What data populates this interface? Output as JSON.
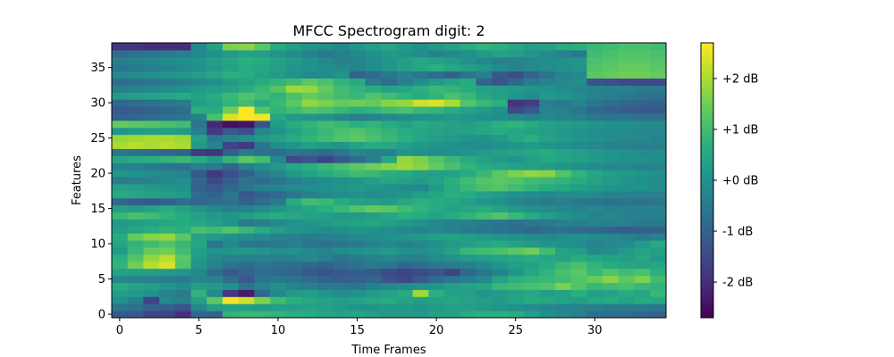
{
  "chart_data": {
    "type": "heatmap",
    "title": "MFCC Spectrogram digit: 2",
    "xlabel": "Time Frames",
    "ylabel": "Features",
    "x_ticks": [
      "0",
      "5",
      "10",
      "15",
      "20",
      "25",
      "30"
    ],
    "x_tick_values": [
      0,
      5,
      10,
      15,
      20,
      25,
      30
    ],
    "y_ticks": [
      "0",
      "5",
      "10",
      "15",
      "20",
      "25",
      "30",
      "35"
    ],
    "y_tick_values": [
      0,
      5,
      10,
      15,
      20,
      25,
      30,
      35
    ],
    "xlim": [
      -0.5,
      34.5
    ],
    "ylim": [
      -0.5,
      38.5
    ],
    "n_frames": 35,
    "n_features": 39,
    "colormap": "viridis",
    "colorbar": {
      "vmin": -2.7,
      "vmax": 2.7,
      "tick_values": [
        -2,
        -1,
        0,
        1,
        2
      ],
      "tick_labels": [
        "-2 dB",
        "-1 dB",
        "+0 dB",
        "+1 dB",
        "+2 dB"
      ]
    },
    "cell_values": [
      [
        -1.2,
        -1.2,
        -1.6,
        -1.6,
        -2.0,
        -0.9,
        -1.0,
        0.8,
        0.9,
        0.9,
        0.8,
        0.7,
        0.6,
        0.5,
        0.4,
        0.5,
        0.3,
        0.2,
        0.2,
        0.2,
        0.4,
        0.4,
        0.6,
        0.7,
        0.7,
        0.6,
        0.3,
        0.0,
        -0.2,
        -0.4,
        -0.7,
        -0.8,
        -0.8,
        -0.9,
        -1.0
      ],
      [
        -0.6,
        -0.7,
        -1.0,
        -1.1,
        -1.3,
        -0.2,
        0.3,
        0.4,
        0.3,
        0.2,
        0.3,
        0.3,
        0.4,
        0.3,
        0.2,
        0.1,
        0.1,
        0.2,
        0.2,
        0.1,
        0.2,
        0.3,
        0.3,
        0.2,
        0.1,
        0.0,
        -0.1,
        -0.2,
        -0.3,
        -0.3,
        -0.4,
        -0.5,
        -0.5,
        -0.5,
        -0.6
      ],
      [
        0.0,
        -0.4,
        -1.6,
        -0.2,
        -0.4,
        0.3,
        1.3,
        2.6,
        2.3,
        1.6,
        1.0,
        0.7,
        0.5,
        0.4,
        0.3,
        0.4,
        0.5,
        0.6,
        0.4,
        0.3,
        0.4,
        0.5,
        0.4,
        0.3,
        0.2,
        0.4,
        0.6,
        0.5,
        0.4,
        0.3,
        0.5,
        0.6,
        0.4,
        0.6,
        0.5
      ],
      [
        0.3,
        0.2,
        0.0,
        -0.3,
        -0.5,
        0.8,
        -0.2,
        -1.8,
        -2.3,
        -0.9,
        -0.2,
        0.2,
        0.3,
        0.1,
        -0.1,
        0.0,
        0.2,
        0.4,
        0.6,
        1.9,
        0.7,
        0.4,
        0.3,
        0.1,
        0.2,
        0.4,
        0.5,
        0.3,
        0.4,
        0.7,
        0.3,
        0.4,
        0.6,
        0.5,
        0.9
      ],
      [
        0.6,
        0.4,
        0.3,
        0.1,
        -0.1,
        0.3,
        0.2,
        0.0,
        -0.6,
        -0.3,
        0.0,
        -0.3,
        -0.4,
        -0.5,
        -0.5,
        -0.6,
        -0.4,
        -0.2,
        -0.1,
        0.0,
        0.1,
        0.3,
        0.4,
        0.5,
        0.9,
        1.0,
        1.1,
        1.2,
        1.6,
        1.2,
        0.9,
        1.0,
        1.1,
        0.9,
        0.8
      ],
      [
        -0.2,
        -0.3,
        -0.4,
        -0.4,
        -0.5,
        -0.2,
        -0.3,
        -0.8,
        -1.2,
        -0.6,
        -0.5,
        -0.6,
        -0.8,
        -1.0,
        -1.1,
        -1.0,
        -0.9,
        -1.3,
        -1.5,
        -1.2,
        -0.8,
        -0.6,
        -0.4,
        -0.2,
        0.4,
        0.7,
        0.8,
        0.9,
        1.0,
        1.2,
        1.4,
        1.7,
        1.3,
        1.6,
        1.0
      ],
      [
        0.4,
        0.3,
        0.3,
        0.2,
        0.1,
        -0.2,
        -0.8,
        -1.2,
        -1.0,
        -0.8,
        -0.9,
        -1.0,
        -1.2,
        -1.3,
        -1.2,
        -1.1,
        -1.2,
        -1.5,
        -1.6,
        -1.5,
        -1.3,
        -1.6,
        -0.9,
        -0.6,
        -0.3,
        0.1,
        0.5,
        0.8,
        1.1,
        1.3,
        0.9,
        1.2,
        1.0,
        1.1,
        0.7
      ],
      [
        0.8,
        1.5,
        2.1,
        2.4,
        1.2,
        0.1,
        -0.3,
        -0.6,
        -0.8,
        -0.6,
        -0.7,
        -0.8,
        -0.9,
        -1.0,
        -0.8,
        -0.7,
        -0.5,
        -0.6,
        -0.9,
        -0.8,
        -0.6,
        -0.5,
        -0.4,
        -0.2,
        0.1,
        0.3,
        0.4,
        0.6,
        0.9,
        1.1,
        0.8,
        0.6,
        0.5,
        0.4,
        0.5
      ],
      [
        0.7,
        1.2,
        1.8,
        2.1,
        1.3,
        0.2,
        -0.2,
        -0.3,
        -0.4,
        -0.3,
        -0.4,
        -0.3,
        -0.2,
        -0.4,
        -0.6,
        -0.5,
        -0.3,
        -0.2,
        -0.4,
        -0.3,
        -0.1,
        0.0,
        0.2,
        0.3,
        0.4,
        0.5,
        0.6,
        0.5,
        0.4,
        0.6,
        0.5,
        0.4,
        0.3,
        0.5,
        0.2
      ],
      [
        0.2,
        0.9,
        1.4,
        1.5,
        1.0,
        0.3,
        0.0,
        0.1,
        0.2,
        0.1,
        -0.1,
        0.0,
        -0.2,
        -0.3,
        -0.1,
        0.0,
        0.1,
        0.2,
        0.0,
        -0.1,
        0.1,
        0.4,
        0.9,
        1.0,
        1.1,
        1.3,
        1.5,
        1.0,
        0.4,
        0.3,
        -0.2,
        -0.1,
        0.2,
        0.4,
        0.3
      ],
      [
        0.5,
        0.8,
        1.0,
        1.2,
        0.9,
        0.5,
        -0.6,
        -0.2,
        -0.5,
        -0.6,
        -0.5,
        -0.4,
        -0.6,
        -0.7,
        -0.6,
        -0.5,
        -0.3,
        -0.2,
        -0.4,
        -0.2,
        0.0,
        0.2,
        0.3,
        0.5,
        0.6,
        0.4,
        0.2,
        0.1,
        0.0,
        -0.1,
        -0.3,
        -0.2,
        -0.1,
        0.2,
        0.6
      ],
      [
        0.6,
        1.4,
        1.7,
        1.8,
        1.3,
        0.4,
        0.2,
        0.0,
        -0.1,
        -0.2,
        -0.3,
        -0.4,
        -0.5,
        -0.4,
        -0.3,
        -0.2,
        -0.1,
        0.0,
        0.1,
        0.2,
        0.3,
        0.4,
        0.3,
        0.2,
        0.1,
        0.0,
        -0.1,
        -0.2,
        -0.1,
        0.0,
        -0.1,
        -0.2,
        -0.3,
        -0.5,
        -0.4
      ],
      [
        0.3,
        0.5,
        0.6,
        0.8,
        0.7,
        1.1,
        1.0,
        1.2,
        0.9,
        0.6,
        0.3,
        0.1,
        0.0,
        -0.1,
        0.0,
        0.1,
        0.0,
        -0.1,
        -0.2,
        -0.3,
        -0.2,
        -0.4,
        -0.5,
        -0.6,
        -0.7,
        -0.8,
        -0.9,
        -0.8,
        -0.7,
        -0.8,
        -0.9,
        -1.0,
        -1.1,
        -1.0,
        -1.0
      ],
      [
        0.2,
        0.3,
        0.4,
        0.5,
        0.6,
        0.5,
        0.3,
        0.1,
        -0.5,
        -0.4,
        -0.2,
        0.0,
        0.1,
        0.2,
        0.3,
        0.4,
        0.5,
        0.3,
        0.2,
        0.0,
        -0.2,
        -0.3,
        -0.4,
        -0.5,
        -0.6,
        -0.7,
        -0.6,
        -0.5,
        -0.4,
        -0.4,
        -0.3,
        -0.3,
        -0.4,
        -0.5,
        -0.5
      ],
      [
        0.9,
        1.1,
        1.0,
        0.8,
        0.6,
        0.4,
        0.2,
        0.1,
        0.3,
        0.5,
        0.6,
        0.5,
        0.4,
        0.3,
        0.2,
        0.2,
        0.3,
        0.5,
        0.7,
        0.6,
        0.4,
        0.6,
        0.8,
        1.0,
        1.2,
        0.9,
        0.6,
        0.3,
        0.1,
        -0.1,
        -0.3,
        -0.2,
        -0.3,
        -0.4,
        -0.4
      ],
      [
        0.3,
        0.2,
        0.4,
        0.6,
        0.4,
        0.1,
        -0.2,
        -0.4,
        -0.3,
        -0.1,
        0.1,
        0.3,
        0.5,
        0.7,
        0.9,
        1.2,
        1.4,
        1.3,
        1.0,
        0.8,
        0.6,
        0.4,
        0.5,
        0.6,
        0.4,
        0.2,
        0.0,
        -0.1,
        -0.2,
        -0.3,
        -0.2,
        -0.3,
        -0.4,
        -0.3,
        -0.3
      ],
      [
        -0.9,
        -1.1,
        -1.2,
        -1.0,
        -0.8,
        -0.9,
        -0.8,
        -0.7,
        -1.0,
        -0.8,
        -0.5,
        0.6,
        1.0,
        0.9,
        0.6,
        0.4,
        0.3,
        0.2,
        0.5,
        0.7,
        0.6,
        0.5,
        0.3,
        0.1,
        0.0,
        -0.2,
        -0.4,
        -0.5,
        -0.4,
        -0.5,
        -0.6,
        -0.7,
        -0.6,
        -0.7,
        -0.6
      ],
      [
        0.6,
        0.5,
        0.4,
        0.3,
        0.2,
        -0.8,
        -1.0,
        -0.6,
        -1.2,
        -1.0,
        -0.8,
        -0.6,
        -0.4,
        -0.2,
        -0.1,
        0.0,
        -0.1,
        0.0,
        0.1,
        0.3,
        0.5,
        0.7,
        0.6,
        0.4,
        0.2,
        0.0,
        -0.1,
        -0.2,
        -0.1,
        -0.1,
        -0.2,
        -0.3,
        -0.3,
        -0.4,
        -0.4
      ],
      [
        0.4,
        0.3,
        0.2,
        0.1,
        0.0,
        -1.0,
        -1.2,
        -0.9,
        -0.6,
        -0.4,
        -0.3,
        -0.2,
        -0.1,
        0.0,
        0.1,
        0.2,
        0.1,
        0.0,
        -0.1,
        -0.2,
        0.2,
        0.6,
        0.9,
        1.1,
        1.2,
        1.0,
        0.8,
        0.6,
        0.5,
        0.3,
        0.2,
        0.1,
        0.0,
        0.0,
        -0.1
      ],
      [
        -0.5,
        -0.4,
        -0.3,
        -0.2,
        -0.1,
        -0.9,
        -1.5,
        -1.1,
        -0.7,
        -0.8,
        -0.6,
        -0.4,
        -0.2,
        -0.1,
        0.0,
        0.1,
        0.3,
        0.5,
        0.4,
        0.2,
        0.4,
        0.7,
        1.0,
        1.2,
        1.3,
        1.2,
        1.0,
        0.9,
        0.8,
        0.6,
        0.4,
        0.2,
        0.1,
        0.0,
        -0.1
      ],
      [
        0.1,
        0.0,
        -0.1,
        -0.2,
        -0.3,
        -1.2,
        -1.8,
        -1.4,
        -1.0,
        -0.5,
        -0.2,
        0.2,
        0.4,
        0.6,
        0.8,
        1.0,
        0.9,
        0.7,
        0.6,
        0.4,
        0.3,
        0.4,
        0.6,
        0.9,
        1.3,
        1.6,
        1.8,
        1.7,
        1.2,
        0.8,
        0.5,
        0.3,
        0.2,
        0.1,
        0.0
      ],
      [
        -0.3,
        -0.4,
        -0.5,
        -0.6,
        -0.7,
        -0.4,
        -0.5,
        -0.9,
        -0.4,
        -0.1,
        0.2,
        0.5,
        0.7,
        0.9,
        1.1,
        1.3,
        1.5,
        1.7,
        1.9,
        1.7,
        1.4,
        1.1,
        0.8,
        0.6,
        0.5,
        0.4,
        0.3,
        0.2,
        0.1,
        0.0,
        -0.1,
        -0.2,
        -0.2,
        -0.3,
        -0.3
      ],
      [
        0.5,
        0.6,
        0.7,
        0.8,
        0.9,
        0.6,
        0.2,
        0.8,
        1.3,
        1.0,
        -0.2,
        -1.5,
        -1.3,
        -1.6,
        -1.2,
        -0.8,
        -0.4,
        0.5,
        1.8,
        1.6,
        1.2,
        0.9,
        0.6,
        0.4,
        0.2,
        0.1,
        0.3,
        0.5,
        0.4,
        0.3,
        0.2,
        0.1,
        0.0,
        0.0,
        -0.1
      ],
      [
        -0.6,
        -0.7,
        -0.8,
        -0.9,
        -1.0,
        -1.8,
        -1.9,
        -1.1,
        -0.5,
        -0.7,
        -0.8,
        -0.6,
        -0.7,
        -0.8,
        -0.6,
        -0.2,
        -0.4,
        -0.3,
        0.1,
        0.0,
        -0.1,
        0.0,
        0.1,
        0.2,
        0.3,
        0.4,
        0.5,
        0.6,
        0.4,
        0.3,
        0.2,
        0.1,
        0.0,
        -0.1,
        -0.1
      ],
      [
        2.0,
        2.1,
        2.0,
        2.1,
        2.0,
        0.2,
        -0.3,
        -1.6,
        -1.8,
        -0.6,
        -0.1,
        0.1,
        0.3,
        0.2,
        0.1,
        0.4,
        0.6,
        0.5,
        0.3,
        0.2,
        0.1,
        0.0,
        -0.1,
        -0.1,
        0.0,
        0.1,
        0.2,
        0.1,
        0.0,
        -0.1,
        -0.2,
        -0.3,
        -0.3,
        -0.4,
        -0.4
      ],
      [
        1.8,
        1.9,
        2.0,
        2.0,
        1.9,
        0.4,
        -0.5,
        -0.3,
        -0.1,
        0.2,
        0.4,
        0.6,
        0.8,
        1.0,
        1.2,
        1.3,
        1.1,
        0.9,
        0.7,
        0.5,
        0.3,
        0.2,
        0.1,
        0.0,
        0.2,
        0.5,
        0.7,
        0.4,
        0.2,
        0.1,
        0.0,
        -0.1,
        -0.2,
        -0.2,
        -0.3
      ],
      [
        0.1,
        0.2,
        0.3,
        0.3,
        0.2,
        -0.4,
        -1.8,
        -1.2,
        -1.4,
        -0.2,
        0.1,
        0.4,
        0.7,
        0.9,
        1.1,
        1.2,
        1.0,
        0.8,
        0.6,
        0.5,
        0.4,
        0.3,
        0.4,
        0.5,
        0.6,
        0.5,
        0.4,
        0.3,
        0.2,
        0.1,
        0.0,
        -0.1,
        -0.1,
        -0.2,
        -0.2
      ],
      [
        1.4,
        1.3,
        1.2,
        1.1,
        1.0,
        -0.6,
        -2.1,
        -2.5,
        -2.4,
        -1.3,
        0.2,
        0.6,
        0.8,
        1.0,
        0.9,
        0.7,
        0.8,
        0.6,
        0.4,
        0.6,
        0.5,
        0.4,
        0.3,
        0.5,
        0.7,
        0.8,
        0.6,
        0.4,
        0.3,
        0.2,
        0.1,
        0.0,
        0.0,
        -0.1,
        -0.1
      ],
      [
        -1.0,
        -0.9,
        -0.8,
        -0.7,
        -0.6,
        -0.3,
        1.1,
        2.4,
        2.7,
        2.6,
        0.5,
        0.2,
        0.1,
        0.0,
        -0.2,
        -0.4,
        -0.3,
        -0.2,
        -0.1,
        0.0,
        0.1,
        0.2,
        0.1,
        0.0,
        -0.1,
        -0.2,
        -0.3,
        -0.2,
        -0.3,
        -0.4,
        -0.5,
        -0.6,
        -0.6,
        -0.7,
        -0.7
      ],
      [
        -1.2,
        -1.1,
        -1.0,
        -0.9,
        -0.8,
        0.7,
        0.6,
        1.5,
        2.7,
        1.2,
        0.8,
        1.0,
        1.2,
        1.1,
        0.9,
        0.7,
        0.8,
        1.0,
        1.1,
        0.9,
        0.8,
        0.6,
        0.4,
        0.2,
        0.0,
        -1.5,
        -1.2,
        -0.3,
        -0.4,
        -0.6,
        -0.9,
        -1.0,
        -1.1,
        -1.2,
        -1.2
      ],
      [
        -0.9,
        -0.8,
        -0.7,
        -0.6,
        -0.5,
        0.3,
        0.5,
        0.8,
        1.0,
        0.6,
        0.9,
        1.3,
        1.8,
        1.6,
        1.4,
        1.5,
        1.4,
        1.7,
        1.8,
        2.3,
        2.4,
        2.0,
        1.2,
        0.9,
        0.7,
        -1.9,
        -1.7,
        -0.4,
        -0.5,
        -0.3,
        -0.6,
        -0.8,
        -0.9,
        -1.0,
        -1.0
      ],
      [
        0.2,
        0.3,
        0.4,
        0.5,
        0.6,
        0.4,
        0.6,
        0.9,
        1.2,
        1.0,
        0.8,
        1.1,
        1.4,
        1.2,
        1.0,
        0.9,
        1.2,
        1.0,
        0.8,
        0.6,
        0.8,
        1.1,
        0.9,
        0.5,
        0.3,
        0.1,
        -0.1,
        0.2,
        0.1,
        -0.1,
        -0.3,
        -0.4,
        -0.5,
        -0.6,
        -0.7
      ],
      [
        -0.4,
        -0.3,
        -0.2,
        -0.1,
        0.0,
        0.2,
        0.3,
        0.4,
        0.6,
        0.9,
        1.2,
        1.9,
        1.8,
        1.4,
        1.0,
        0.8,
        0.6,
        0.4,
        0.5,
        0.7,
        0.9,
        0.8,
        0.6,
        0.4,
        0.3,
        0.2,
        0.1,
        0.0,
        -0.1,
        -0.2,
        -0.3,
        -0.4,
        -0.4,
        -0.5,
        -0.5
      ],
      [
        -0.8,
        -0.7,
        -0.6,
        -0.5,
        -0.4,
        -0.2,
        0.0,
        0.2,
        0.4,
        0.6,
        0.8,
        1.0,
        1.3,
        1.1,
        0.8,
        0.6,
        -0.5,
        -0.8,
        -0.4,
        -0.1,
        0.2,
        0.4,
        0.6,
        -1.0,
        -1.3,
        -0.9,
        -0.5,
        -0.3,
        -0.2,
        -0.1,
        -1.3,
        -1.4,
        -1.5,
        -1.5,
        -1.5
      ],
      [
        -0.2,
        -0.1,
        0.0,
        0.1,
        0.2,
        0.3,
        0.5,
        0.7,
        0.6,
        0.4,
        0.2,
        0.0,
        -0.2,
        -0.1,
        0.1,
        -1.0,
        -0.8,
        -0.6,
        -0.4,
        -0.6,
        -0.8,
        -1.0,
        -0.6,
        -0.4,
        -1.2,
        -1.4,
        -1.0,
        -0.6,
        -0.3,
        -0.2,
        1.3,
        1.4,
        1.5,
        1.5,
        1.4
      ],
      [
        -0.6,
        -0.5,
        -0.4,
        -0.3,
        -0.2,
        0.0,
        0.2,
        0.4,
        0.6,
        0.5,
        0.3,
        0.1,
        0.0,
        -0.1,
        -0.2,
        -0.3,
        -0.1,
        0.1,
        0.3,
        0.5,
        0.7,
        0.5,
        0.3,
        0.1,
        -0.1,
        -0.3,
        -0.2,
        -0.1,
        0.0,
        0.1,
        1.2,
        1.3,
        1.4,
        1.4,
        1.3
      ],
      [
        -0.4,
        -0.3,
        -0.2,
        -0.1,
        0.0,
        0.1,
        0.3,
        0.5,
        0.7,
        0.6,
        0.4,
        0.2,
        0.0,
        -0.2,
        -0.4,
        -0.3,
        -0.1,
        0.1,
        0.3,
        0.5,
        0.4,
        0.2,
        0.0,
        -0.2,
        -0.4,
        -0.3,
        -0.2,
        -0.1,
        0.0,
        0.1,
        1.1,
        1.2,
        1.3,
        1.3,
        1.2
      ],
      [
        -0.8,
        -0.7,
        -0.6,
        -0.5,
        -0.4,
        -0.2,
        0.0,
        0.2,
        0.4,
        0.3,
        0.1,
        -0.1,
        -0.3,
        -0.5,
        -0.4,
        -0.2,
        0.0,
        0.2,
        0.1,
        -0.1,
        -0.3,
        -0.2,
        0.0,
        0.2,
        0.4,
        0.3,
        0.1,
        -0.1,
        -0.3,
        -0.5,
        1.0,
        1.1,
        1.2,
        1.2,
        1.1
      ],
      [
        -1.9,
        -1.9,
        -2.0,
        -2.0,
        -2.0,
        -0.2,
        0.4,
        1.6,
        1.7,
        1.3,
        0.6,
        0.3,
        0.1,
        0.0,
        -0.2,
        0.1,
        0.3,
        0.5,
        0.2,
        0.0,
        0.2,
        0.4,
        0.6,
        0.8,
        0.7,
        0.5,
        0.3,
        0.4,
        0.6,
        0.7,
        0.9,
        1.0,
        1.1,
        1.1,
        1.0
      ]
    ]
  }
}
